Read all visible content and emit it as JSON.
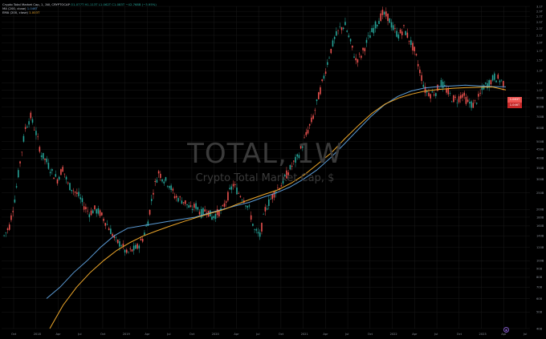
{
  "legend": {
    "title": "Crypto Total Market Cap, 1, 1W, CRYPTOCAP",
    "ohlc": "O1.077T H1.113T L1.062T C1.083T  −42.768B (−3.95%)",
    "ma_label": "MA (200, close)",
    "ma_value": "1.046T",
    "ema_label": "EMA (200, close)",
    "ema_value": "1.003T"
  },
  "watermark": {
    "title": "TOTAL, 1W",
    "subtitle": "Crypto Total Market Cap, $"
  },
  "price_tags": [
    "1.083T",
    "1.046T"
  ],
  "colors": {
    "up": "#26a69a",
    "down": "#ef5350",
    "ma": "#5b9bd5",
    "ema": "#f0a92b",
    "grid": "#1a1a1a",
    "bg": "#000000"
  },
  "chart_data": {
    "type": "candlestick",
    "yaxis_labels": [
      "3.1T",
      "2.9T",
      "2.7T",
      "2.5T",
      "2.3T",
      "2.1T",
      "1.9T",
      "1.7T",
      "1.5T",
      "1.3T",
      "1.1T",
      "1.0T",
      "900B",
      "800B",
      "700B",
      "600B",
      "500B",
      "450B",
      "400B",
      "350B",
      "300B",
      "250B",
      "200B",
      "180B",
      "160B",
      "140B",
      "120B",
      "100B",
      "90B",
      "80B",
      "70B",
      "60B",
      "50B",
      "40B"
    ],
    "xaxis_labels": [
      "Oct",
      "2018",
      "Apr",
      "Jul",
      "Oct",
      "2019",
      "Apr",
      "Jul",
      "Oct",
      "2020",
      "Apr",
      "Jul",
      "Oct",
      "2021",
      "Apr",
      "Jul",
      "Oct",
      "2022",
      "Apr",
      "Jul",
      "Oct",
      "2023",
      "Apr",
      "Jul"
    ],
    "series_close": [
      140,
      160,
      230,
      380,
      600,
      700,
      560,
      420,
      380,
      330,
      300,
      350,
      280,
      260,
      240,
      210,
      190,
      200,
      190,
      170,
      150,
      130,
      125,
      110,
      115,
      120,
      135,
      170,
      260,
      330,
      300,
      280,
      240,
      230,
      220,
      200,
      210,
      190,
      200,
      180,
      190,
      200,
      240,
      280,
      250,
      230,
      200,
      150,
      140,
      200,
      230,
      260,
      280,
      320,
      360,
      400,
      480,
      580,
      700,
      920,
      1200,
      1600,
      2000,
      2300,
      2400,
      1900,
      1500,
      1600,
      1900,
      2200,
      2500,
      2800,
      2700,
      2300,
      2100,
      2300,
      2000,
      1700,
      1300,
      1000,
      950,
      980,
      1100,
      1000,
      900,
      880,
      950,
      850,
      820,
      900,
      1050,
      1100,
      1200,
      1150,
      1083
    ],
    "ma_points": [
      60,
      70,
      85,
      100,
      120,
      140,
      155,
      160,
      165,
      170,
      175,
      180,
      190,
      200,
      210,
      220,
      235,
      250,
      270,
      300,
      340,
      400,
      480,
      580,
      700,
      820,
      920,
      990,
      1030,
      1050,
      1060,
      1070,
      1060,
      1050,
      1046
    ],
    "ema_points": [
      40,
      55,
      70,
      85,
      100,
      115,
      128,
      140,
      150,
      160,
      170,
      180,
      190,
      200,
      215,
      230,
      245,
      260,
      285,
      320,
      370,
      430,
      520,
      620,
      730,
      830,
      900,
      950,
      990,
      1010,
      1025,
      1035,
      1040,
      1045,
      1003
    ]
  }
}
